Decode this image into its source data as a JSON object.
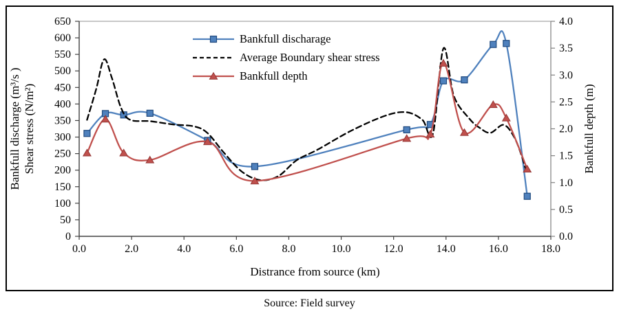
{
  "figure": {
    "caption": "Source: Field survey"
  },
  "chart_data": {
    "type": "line",
    "title": "",
    "legend_position": "top-center-inside",
    "grid": false,
    "x_axis": {
      "label": "Distrance from source (km)",
      "min": 0,
      "max": 18,
      "tick_step": 2,
      "ticks": [
        "0.0",
        "2.0",
        "4.0",
        "6.0",
        "8.0",
        "10.0",
        "12.0",
        "14.0",
        "16.0",
        "18.0"
      ]
    },
    "y_axis_left": {
      "label_line1": "Bankfull discharge (m³/s )",
      "label_line2": "Shear stress (N/m²)",
      "min": 0,
      "max": 650,
      "tick_step": 50,
      "ticks": [
        "0",
        "50",
        "100",
        "150",
        "200",
        "250",
        "300",
        "350",
        "400",
        "450",
        "500",
        "550",
        "600",
        "650"
      ]
    },
    "y_axis_right": {
      "label": "Bankfull depth (m)",
      "min": 0,
      "max": 4,
      "tick_step": 0.5,
      "ticks": [
        "0.0",
        "0.5",
        "1.0",
        "1.5",
        "2.0",
        "2.5",
        "3.0",
        "3.5",
        "4.0"
      ]
    },
    "series": [
      {
        "name": "Bankfull discharage",
        "axis": "left",
        "marker": "square",
        "line": "solid",
        "color": "#4f81bd",
        "edge_color": "#1f497d",
        "points": [
          [
            0.3,
            311
          ],
          [
            1.0,
            371
          ],
          [
            1.7,
            367
          ],
          [
            2.7,
            372
          ],
          [
            4.9,
            290
          ],
          [
            6.7,
            211
          ],
          [
            12.5,
            322
          ],
          [
            13.4,
            338
          ],
          [
            13.9,
            470
          ],
          [
            14.7,
            473
          ],
          [
            15.8,
            580
          ],
          [
            16.3,
            583
          ],
          [
            17.1,
            121
          ]
        ]
      },
      {
        "name": "Average Boundary shear stress",
        "axis": "left",
        "marker": "none",
        "line": "dashed",
        "color": "#000000",
        "edge_color": "#000000",
        "points": [
          [
            0.3,
            352
          ],
          [
            0.65,
            445
          ],
          [
            0.95,
            535
          ],
          [
            1.25,
            478
          ],
          [
            1.6,
            388
          ],
          [
            1.95,
            352
          ],
          [
            2.7,
            348
          ],
          [
            3.6,
            338
          ],
          [
            4.4,
            332
          ],
          [
            4.9,
            312
          ],
          [
            5.5,
            255
          ],
          [
            6.2,
            196
          ],
          [
            6.9,
            170
          ],
          [
            7.6,
            182
          ],
          [
            8.3,
            230
          ],
          [
            9.1,
            262
          ],
          [
            10.4,
            320
          ],
          [
            11.7,
            365
          ],
          [
            12.5,
            375
          ],
          [
            13.1,
            352
          ],
          [
            13.5,
            310
          ],
          [
            13.9,
            568
          ],
          [
            14.3,
            424
          ],
          [
            14.9,
            355
          ],
          [
            15.3,
            327
          ],
          [
            15.7,
            313
          ],
          [
            16.2,
            337
          ],
          [
            16.6,
            300
          ],
          [
            16.9,
            240
          ],
          [
            17.05,
            200
          ]
        ]
      },
      {
        "name": "Bankfull depth",
        "axis": "right",
        "marker": "triangle",
        "line": "solid",
        "color": "#c0504d",
        "edge_color": "#943634",
        "points": [
          [
            0.3,
            1.55
          ],
          [
            1.0,
            2.18
          ],
          [
            1.7,
            1.55
          ],
          [
            2.7,
            1.42
          ],
          [
            4.9,
            1.76
          ],
          [
            6.7,
            1.03
          ],
          [
            12.5,
            1.82
          ],
          [
            13.4,
            1.9
          ],
          [
            13.9,
            3.22
          ],
          [
            14.7,
            1.93
          ],
          [
            15.8,
            2.45
          ],
          [
            16.3,
            2.2
          ],
          [
            17.1,
            1.25
          ]
        ]
      }
    ]
  }
}
